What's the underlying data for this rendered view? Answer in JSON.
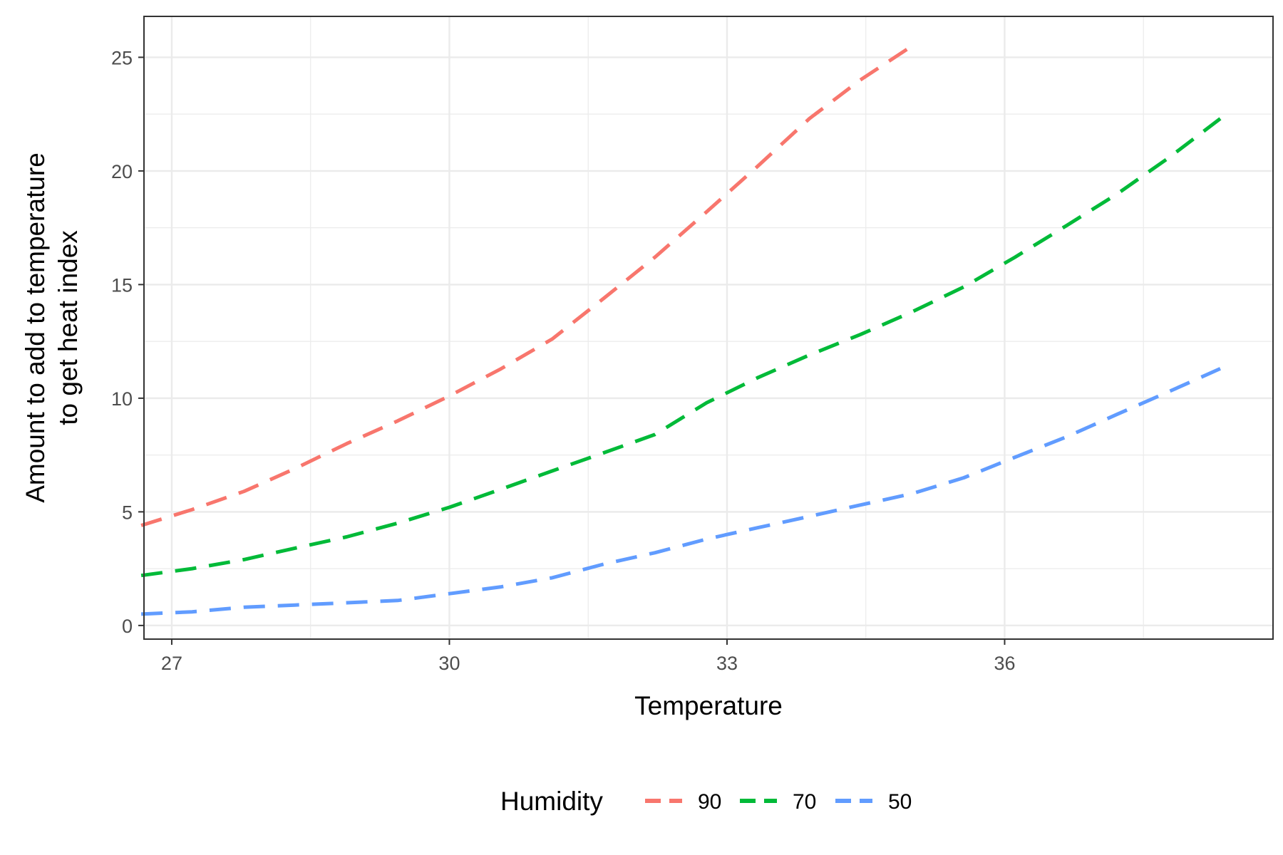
{
  "chart_data": {
    "type": "line",
    "title": "",
    "xlabel": "Temperature",
    "ylabel": [
      "Amount to add to temperature",
      "to get heat index"
    ],
    "xlim": [
      26.7,
      38.9
    ],
    "ylim": [
      -0.6,
      26.8
    ],
    "x_ticks": [
      27,
      30,
      33,
      36
    ],
    "x_tick_labels": [
      "27",
      "30",
      "33",
      "36"
    ],
    "y_ticks": [
      0,
      5,
      10,
      15,
      20,
      25
    ],
    "y_tick_labels": [
      "0",
      "5",
      "10",
      "15",
      "20",
      "25"
    ],
    "grid": true,
    "line_style": "dashed",
    "legend": {
      "title": "Humidity",
      "position": "bottom"
    },
    "series": [
      {
        "name": "90",
        "color": "#F8766D",
        "x": [
          26.67,
          27.22,
          27.78,
          28.33,
          28.89,
          29.44,
          30.0,
          30.56,
          31.11,
          31.67,
          32.22,
          32.78,
          33.33,
          33.89,
          34.44,
          35.0
        ],
        "y": [
          4.4,
          5.1,
          5.9,
          6.9,
          8.0,
          9.0,
          10.1,
          11.3,
          12.6,
          14.4,
          16.2,
          18.2,
          20.2,
          22.3,
          24.0,
          25.5
        ]
      },
      {
        "name": "70",
        "color": "#00BA38",
        "x": [
          26.67,
          27.22,
          27.78,
          28.33,
          28.89,
          29.44,
          30.0,
          30.56,
          31.11,
          31.67,
          32.22,
          32.78,
          33.33,
          33.89,
          34.44,
          35.0,
          35.56,
          36.11,
          36.67,
          37.22,
          37.78,
          38.33
        ],
        "y": [
          2.2,
          2.5,
          2.9,
          3.4,
          3.9,
          4.5,
          5.2,
          6.0,
          6.8,
          7.6,
          8.4,
          9.8,
          10.9,
          11.9,
          12.8,
          13.8,
          14.9,
          16.2,
          17.6,
          19.0,
          20.6,
          22.3
        ]
      },
      {
        "name": "50",
        "color": "#619CFF",
        "x": [
          26.67,
          27.22,
          27.78,
          28.33,
          28.89,
          29.44,
          30.0,
          30.56,
          31.11,
          31.67,
          32.22,
          32.78,
          33.33,
          33.89,
          34.44,
          35.0,
          35.56,
          36.11,
          36.67,
          37.22,
          37.78,
          38.33
        ],
        "y": [
          0.5,
          0.6,
          0.8,
          0.9,
          1.0,
          1.1,
          1.4,
          1.7,
          2.1,
          2.7,
          3.2,
          3.8,
          4.3,
          4.8,
          5.3,
          5.8,
          6.5,
          7.4,
          8.3,
          9.3,
          10.3,
          11.3
        ]
      }
    ]
  }
}
